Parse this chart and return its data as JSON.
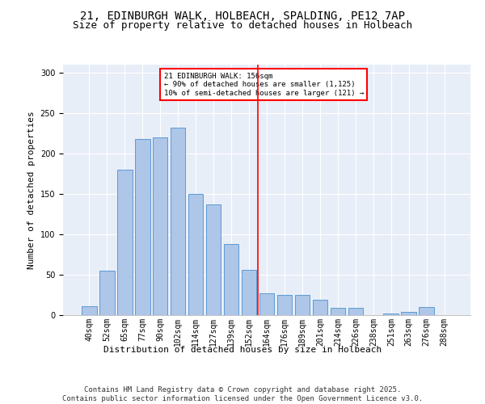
{
  "title1": "21, EDINBURGH WALK, HOLBEACH, SPALDING, PE12 7AP",
  "title2": "Size of property relative to detached houses in Holbeach",
  "xlabel": "Distribution of detached houses by size in Holbeach",
  "ylabel": "Number of detached properties",
  "categories": [
    "40sqm",
    "52sqm",
    "65sqm",
    "77sqm",
    "90sqm",
    "102sqm",
    "114sqm",
    "127sqm",
    "139sqm",
    "152sqm",
    "164sqm",
    "176sqm",
    "189sqm",
    "201sqm",
    "214sqm",
    "226sqm",
    "238sqm",
    "251sqm",
    "263sqm",
    "276sqm",
    "288sqm"
  ],
  "values": [
    11,
    55,
    180,
    218,
    220,
    232,
    150,
    137,
    88,
    56,
    27,
    25,
    25,
    19,
    9,
    9,
    0,
    2,
    4,
    10,
    0
  ],
  "bar_color": "#aec6e8",
  "bar_edge_color": "#5b9bd5",
  "vline_x": 9.5,
  "vline_color": "red",
  "annotation_text": "21 EDINBURGH WALK: 156sqm\n← 90% of detached houses are smaller (1,125)\n10% of semi-detached houses are larger (121) →",
  "annotation_box_color": "white",
  "annotation_box_edgecolor": "red",
  "ylim": [
    0,
    310
  ],
  "yticks": [
    0,
    50,
    100,
    150,
    200,
    250,
    300
  ],
  "background_color": "#e8eef8",
  "footer_text": "Contains HM Land Registry data © Crown copyright and database right 2025.\nContains public sector information licensed under the Open Government Licence v3.0.",
  "title_fontsize": 10,
  "title2_fontsize": 9,
  "xlabel_fontsize": 8,
  "ylabel_fontsize": 8,
  "footer_fontsize": 6.5,
  "tick_fontsize": 7,
  "annot_fontsize": 6.5
}
